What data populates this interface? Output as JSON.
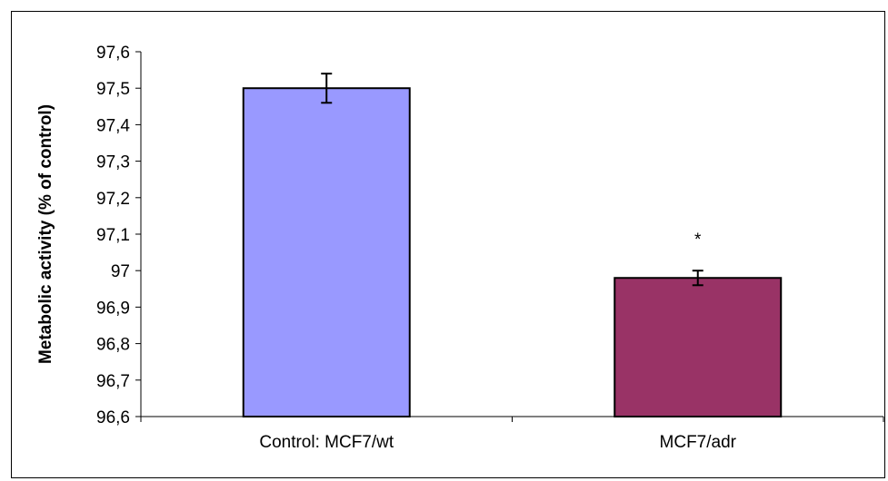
{
  "chart_data": {
    "type": "bar",
    "title": "",
    "xlabel": "",
    "ylabel": "Metabolic activity (% of control)",
    "ylim": [
      96.6,
      97.6
    ],
    "yticks": [
      96.6,
      96.7,
      96.8,
      96.9,
      97.0,
      97.1,
      97.2,
      97.3,
      97.4,
      97.5,
      97.6
    ],
    "ytick_labels": [
      "96,6",
      "96,7",
      "96,8",
      "96,9",
      "97",
      "97,1",
      "97,2",
      "97,3",
      "97,4",
      "97,5",
      "97,6"
    ],
    "categories": [
      "Control: MCF7/wt",
      "MCF7/adr"
    ],
    "values": [
      97.5,
      96.98
    ],
    "errors": [
      0.04,
      0.02
    ],
    "colors": [
      "#9999ff",
      "#993366"
    ],
    "annotations": [
      {
        "category_index": 1,
        "text": "*"
      }
    ],
    "grid": false,
    "legend": "none"
  }
}
